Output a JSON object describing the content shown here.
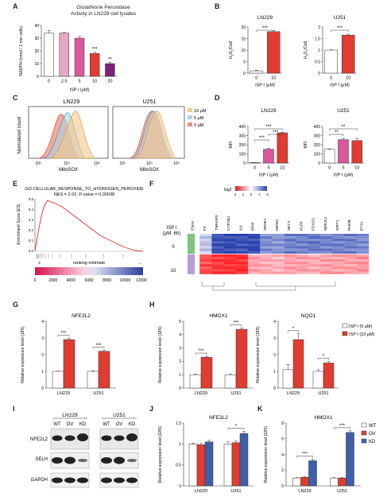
{
  "figure": {
    "panel_letters": [
      "A",
      "B",
      "C",
      "D",
      "E",
      "F",
      "G",
      "H",
      "I",
      "J",
      "K"
    ]
  },
  "colors": {
    "white_bar": "#ffffff",
    "pink": "#e7a7c4",
    "magenta": "#d9579a",
    "red": "#e03c31",
    "purple": "#7a2479",
    "blue": "#3f5fa8",
    "hist_10": "#f5c68a",
    "hist_5": "#a8d6e8",
    "hist_0": "#ef8f7a"
  },
  "panelA": {
    "title": "Glutathione Peroxidase\nActivity in LN229 cell lysates",
    "ylabel": "NADPH (nmol / 1 min cells)",
    "xlabel": "ISP I (μM)"
  },
  "panelB": {
    "left_title": "LN229",
    "right_title": "U251",
    "ylabel": "H2O2/Cell",
    "xlabel": "ISP I (μM)"
  },
  "panelC": {
    "left_title": "LN229",
    "right_title": "U251",
    "ylabel": "Normalized count",
    "xlabel": "MitoSOX",
    "legend": [
      "10 μM",
      "5 μM",
      "0 μM"
    ],
    "xticks": [
      "10³",
      "10⁴",
      "10⁵"
    ]
  },
  "panelD": {
    "left_title": "LN229",
    "right_title": "U251",
    "ylabel": "MFI",
    "xlabel": "ISP I (μM)"
  },
  "panelE": {
    "title": "GO-CELLULAR_RESPONSE_TO_HYDROGEN_PEROXIDE",
    "stats": "NES = 2.02, P-value = 0.00038",
    "ylabel": "Enrichment Score (ES)",
    "xlabel": "ranking estimate",
    "plus": "+",
    "minus": "-",
    "axis_ticks": [
      "0",
      "2000",
      "4000",
      "6000",
      "8000",
      "10000",
      "12000"
    ],
    "yticks": [
      "0.5",
      "0.4",
      "0.3",
      "0.2",
      "0.1",
      "0.0"
    ]
  },
  "panelF": {
    "row_header": "ISP I\n(μM, 6h)",
    "row_labels": [
      "0",
      "10"
    ],
    "legend_title": "log2",
    "legend_ticks": [
      "2",
      "1",
      "0",
      "-1",
      "-2"
    ],
    "genes": [
      "Class",
      "F3",
      "TNFAIP3",
      "CYP1B1",
      "IL6",
      "PPIF",
      "SPHK1",
      "MDM2",
      "SETX",
      "KLF6",
      "FOXO1",
      "NFE2L2",
      "SIRT1",
      "RHOB",
      "ETS1"
    ]
  },
  "panelI": {
    "groups": [
      "LN229",
      "U251"
    ],
    "lanes": [
      "WT",
      "OV",
      "KD",
      "WT",
      "OV",
      "KD"
    ],
    "rows": [
      "NFE2L2",
      "SELH",
      "GAPDH"
    ]
  },
  "legendGH": {
    "items": [
      "ISP I (0 μM)",
      "ISP I (10 μM)"
    ]
  },
  "legendJK": {
    "items": [
      "WT",
      "OV",
      "KD"
    ]
  },
  "chart_data": [
    {
      "id": "A",
      "type": "bar",
      "title": "Glutathione Peroxidase\nActivity in LN229 cell lysates",
      "xlabel": "ISP I (μM)",
      "ylabel": "NADPH (nmol / 1 min cells)",
      "categories": [
        "0",
        "2.5",
        "5",
        "10",
        "20"
      ],
      "values": [
        34,
        34,
        30,
        18,
        10
      ],
      "errors": [
        2,
        0.5,
        1.5,
        1,
        1
      ],
      "significance": [
        "",
        "",
        "",
        "***",
        "**"
      ],
      "ylim": [
        0,
        40
      ],
      "yticks": [
        0,
        10,
        20,
        30,
        40
      ]
    },
    {
      "id": "B-LN229",
      "type": "bar",
      "title": "LN229",
      "xlabel": "ISP I (μM)",
      "ylabel": "H2O2/Cell",
      "categories": [
        "0",
        "10"
      ],
      "values": [
        1,
        18
      ],
      "errors": [
        0.3,
        0.5
      ],
      "ylim": [
        0,
        20
      ],
      "yticks": [
        0,
        5,
        10,
        15,
        20
      ],
      "brackets": [
        [
          "0",
          "10",
          "***"
        ]
      ]
    },
    {
      "id": "B-U251",
      "type": "bar",
      "title": "U251",
      "xlabel": "ISP I (μM)",
      "ylabel": "H2O2/Cell",
      "categories": [
        "0",
        "10"
      ],
      "values": [
        1,
        1.65
      ],
      "errors": [
        0.02,
        0.04
      ],
      "ylim": [
        0,
        2
      ],
      "yticks": [
        0,
        0.5,
        1.0,
        1.5,
        2.0
      ],
      "brackets": [
        [
          "0",
          "10",
          "***"
        ]
      ]
    },
    {
      "id": "D-LN229",
      "type": "bar",
      "title": "LN229",
      "xlabel": "ISP I (μM)",
      "ylabel": "MFI",
      "categories": [
        "0",
        "5",
        "10"
      ],
      "values": [
        5,
        150,
        330
      ],
      "errors": [
        2,
        10,
        8
      ],
      "ylim": [
        0,
        400
      ],
      "yticks": [
        0,
        100,
        200,
        300,
        400
      ],
      "brackets": [
        [
          "0",
          "5",
          "***"
        ],
        [
          "5",
          "10",
          "***"
        ],
        [
          "0",
          "10",
          "***"
        ]
      ]
    },
    {
      "id": "D-U251",
      "type": "bar",
      "title": "U251",
      "xlabel": "ISP I (μM)",
      "ylabel": "MFI",
      "categories": [
        "0",
        "5",
        "10"
      ],
      "values": [
        150,
        255,
        245
      ],
      "errors": [
        5,
        15,
        25
      ],
      "ylim": [
        0,
        400
      ],
      "yticks": [
        0,
        100,
        200,
        300,
        400
      ],
      "brackets": [
        [
          "0",
          "5",
          "**"
        ],
        [
          "0",
          "10",
          "**"
        ]
      ]
    },
    {
      "id": "G",
      "type": "bar",
      "title": "NFE2L2",
      "ylabel": "Relative expression level (18S)",
      "categories": [
        "LN229",
        "U251"
      ],
      "series": [
        {
          "name": "ISP I (0 μM)",
          "values": [
            1,
            1
          ],
          "errors": [
            0.02,
            0.03
          ]
        },
        {
          "name": "ISP I (10 μM)",
          "values": [
            2.9,
            2.2
          ],
          "errors": [
            0.08,
            0.05
          ]
        }
      ],
      "significance": [
        "***",
        "***"
      ],
      "ylim": [
        0,
        4
      ],
      "yticks": [
        0,
        1,
        2,
        3,
        4
      ]
    },
    {
      "id": "H-HMOX1",
      "type": "bar",
      "title": "HMOX1",
      "ylabel": "Relative expression level (18S)",
      "categories": [
        "LN229",
        "U251"
      ],
      "series": [
        {
          "name": "ISP I (0 μM)",
          "values": [
            1,
            1
          ],
          "errors": [
            0.05,
            0.05
          ]
        },
        {
          "name": "ISP I (10 μM)",
          "values": [
            2.3,
            4.4
          ],
          "errors": [
            0.08,
            0.08
          ]
        }
      ],
      "significance": [
        "***",
        "***"
      ],
      "ylim": [
        0,
        5
      ],
      "yticks": [
        0,
        1,
        2,
        3,
        4,
        5
      ]
    },
    {
      "id": "H-NQO1",
      "type": "bar",
      "title": "NQO1",
      "ylabel": "Relative expression level (18S)",
      "categories": [
        "LN229",
        "U251"
      ],
      "series": [
        {
          "name": "ISP I (0 μM)",
          "values": [
            1.1,
            1
          ],
          "errors": [
            0.3,
            0.1
          ]
        },
        {
          "name": "ISP I (10 μM)",
          "values": [
            2.9,
            1.5
          ],
          "errors": [
            0.35,
            0.1
          ]
        }
      ],
      "significance": [
        "*",
        "*"
      ],
      "ylim": [
        0,
        4
      ],
      "yticks": [
        0,
        1,
        2,
        3,
        4
      ]
    },
    {
      "id": "J",
      "type": "bar",
      "title": "NFE2L2",
      "ylabel": "Relative expression level (18S)",
      "categories": [
        "LN229",
        "U251"
      ],
      "series": [
        {
          "name": "WT",
          "values": [
            1,
            1
          ],
          "errors": [
            0.02,
            0.05
          ]
        },
        {
          "name": "OV",
          "values": [
            0.98,
            1.03
          ],
          "errors": [
            0.03,
            0.04
          ]
        },
        {
          "name": "KD",
          "values": [
            1.05,
            1.25
          ],
          "errors": [
            0.04,
            0.05
          ]
        }
      ],
      "significance": [
        "",
        "*"
      ],
      "ylim": [
        0,
        1.5
      ],
      "yticks": [
        0.0,
        0.5,
        1.0,
        1.5
      ]
    },
    {
      "id": "K",
      "type": "bar",
      "title": "HMOX1",
      "ylabel": "Relative expression level (18S)",
      "categories": [
        "LN229",
        "U251"
      ],
      "series": [
        {
          "name": "WT",
          "values": [
            1,
            1
          ],
          "errors": [
            0.05,
            0.05
          ]
        },
        {
          "name": "OV",
          "values": [
            1.1,
            1
          ],
          "errors": [
            0.05,
            0.05
          ]
        },
        {
          "name": "KD",
          "values": [
            3.2,
            6.8
          ],
          "errors": [
            0.2,
            0.2
          ]
        }
      ],
      "significance": [
        "***",
        "***"
      ],
      "ylim": [
        0,
        8
      ],
      "yticks": [
        0,
        2,
        4,
        6,
        8
      ]
    }
  ]
}
